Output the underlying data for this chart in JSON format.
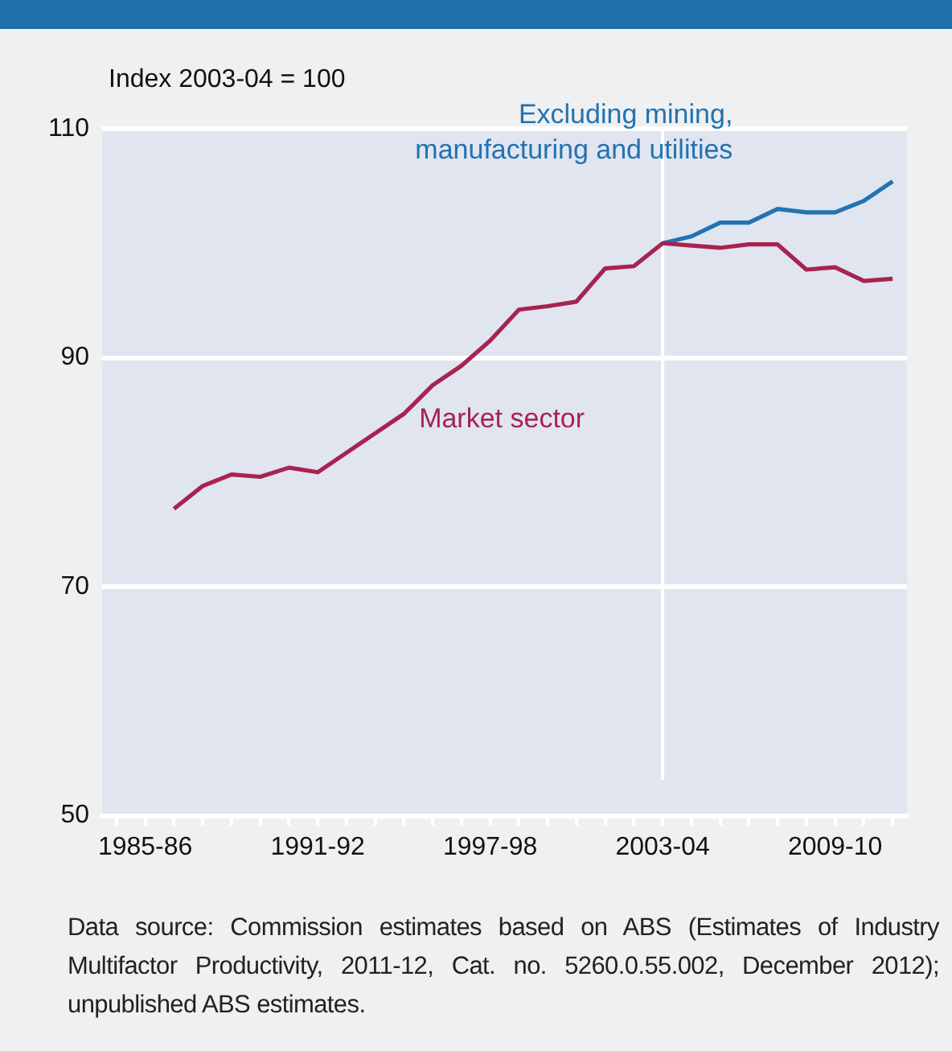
{
  "chart_data": {
    "type": "line",
    "ylabel": "Index 2003-04 = 100",
    "categories": [
      null,
      "1985-86",
      null,
      null,
      null,
      null,
      null,
      "1991-92",
      null,
      null,
      null,
      null,
      null,
      "1997-98",
      null,
      null,
      null,
      null,
      null,
      "2003-04",
      null,
      null,
      null,
      null,
      null,
      "2009-10",
      null,
      null
    ],
    "series": [
      {
        "name": "Market sector",
        "color": "#a8234f",
        "values": [
          null,
          null,
          76.8,
          78.8,
          79.8,
          79.6,
          80.4,
          80.0,
          81.7,
          83.4,
          85.1,
          87.6,
          89.3,
          91.5,
          94.2,
          94.5,
          94.9,
          97.8,
          98.0,
          100,
          99.8,
          99.6,
          99.9,
          99.9,
          97.7,
          97.9,
          96.7,
          96.9
        ]
      },
      {
        "name": "Excluding mining, manufacturing and utilities",
        "color": "#2273b0",
        "values": [
          null,
          null,
          null,
          null,
          null,
          null,
          null,
          null,
          null,
          null,
          null,
          null,
          null,
          null,
          null,
          null,
          null,
          null,
          null,
          100,
          100.6,
          101.8,
          101.8,
          103.0,
          102.7,
          102.7,
          103.7,
          105.4
        ]
      }
    ],
    "ylim": [
      50,
      110
    ],
    "yticks": [
      50,
      70,
      90,
      110
    ],
    "grid": "y",
    "legend": false,
    "marker": "none",
    "line_style": "solid",
    "ref_lines": [
      {
        "axis": "x",
        "value": "2003-04",
        "color": "#ffffff"
      }
    ],
    "annotations": [
      "Data source: Commission estimates based on ABS (Estimates of Industry Multifactor Productivity, 2011-12, Cat. no. 5260.0.55.002, December 2012); unpublished ABS estimates."
    ]
  }
}
